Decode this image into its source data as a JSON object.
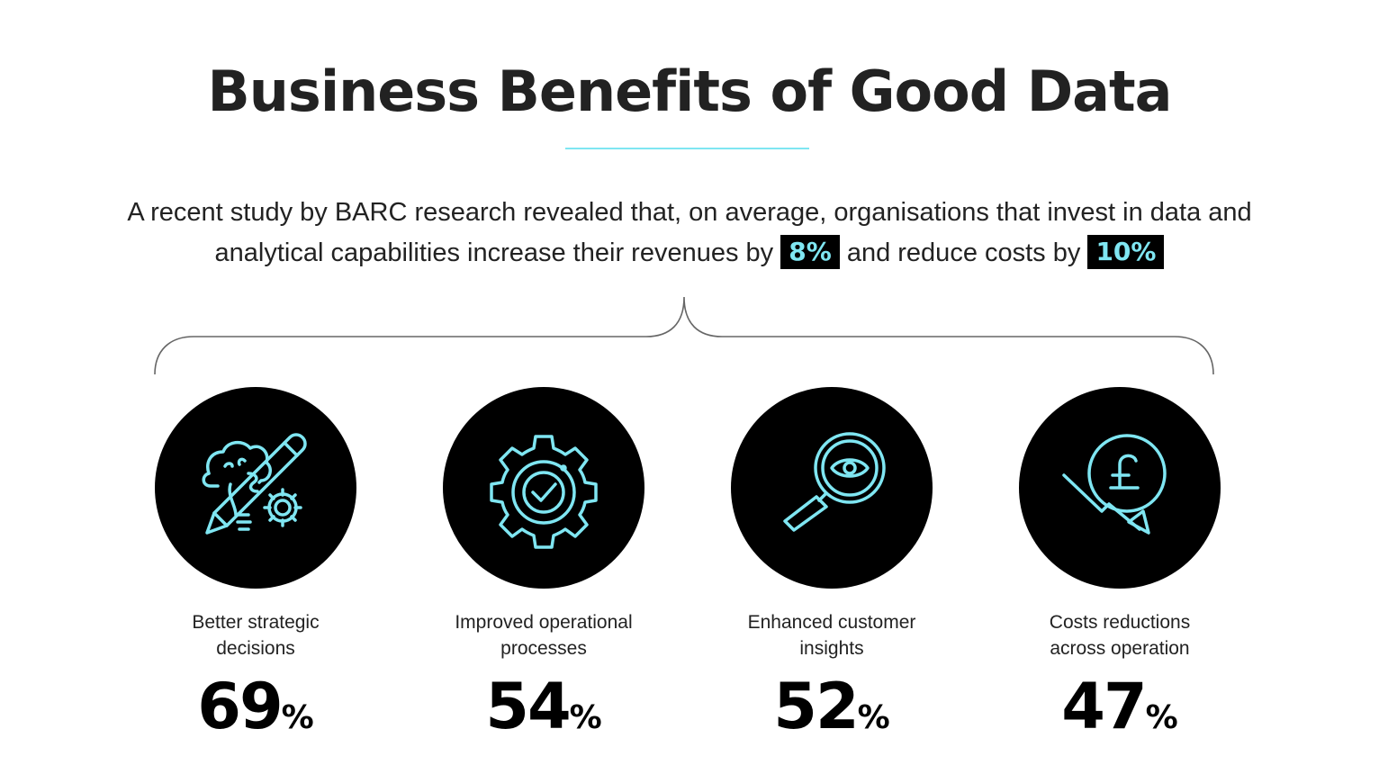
{
  "title": "Business Benefits of Good Data",
  "intro": {
    "text_part1": "A recent study by BARC research revealed that, on average, organisations that invest in data and analytical capabilities increase their revenues by",
    "revenue_increase": "8%",
    "text_part2": "and reduce costs by",
    "cost_reduction": "10%"
  },
  "colors": {
    "accent": "#7fe6f2",
    "circle": "#000000",
    "text": "#222222"
  },
  "benefits": [
    {
      "icon": "idea-pencil-gear-icon",
      "label_line1": "Better strategic",
      "label_line2": "decisions",
      "value": "69",
      "unit": "%"
    },
    {
      "icon": "gear-check-icon",
      "label_line1": "Improved operational",
      "label_line2": "processes",
      "value": "54",
      "unit": "%"
    },
    {
      "icon": "magnifier-eye-icon",
      "label_line1": "Enhanced customer",
      "label_line2": "insights",
      "value": "52",
      "unit": "%"
    },
    {
      "icon": "pound-down-arrow-icon",
      "label_line1": "Costs reductions",
      "label_line2": "across operation",
      "value": "47",
      "unit": "%"
    }
  ]
}
